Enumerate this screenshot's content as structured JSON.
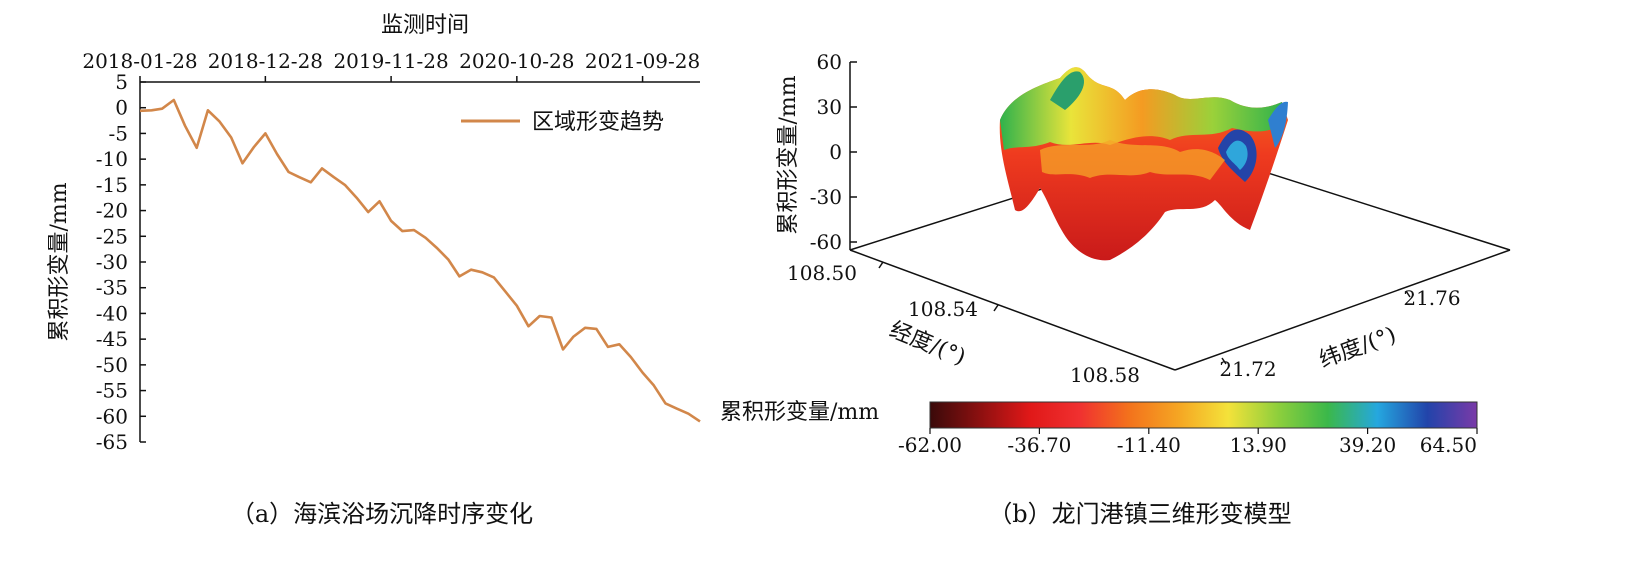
{
  "chart_data": [
    {
      "type": "line",
      "x_axis_title": "监测时间",
      "x_axis_position": "top",
      "x_tick_labels": [
        "2018-01-28",
        "2018-12-28",
        "2019-11-28",
        "2020-10-28",
        "2021-09-28"
      ],
      "ylabel": "累积形变量/mm",
      "y_ticks": [
        5,
        0,
        -5,
        -10,
        -15,
        -20,
        -25,
        -30,
        -35,
        -40,
        -45,
        -50,
        -55,
        -60,
        -65
      ],
      "ylim": [
        -65,
        5
      ],
      "grid": false,
      "legend_position": "top-right",
      "series": [
        {
          "name": "区域形变趋势",
          "color": "#d2874a",
          "points": [
            [
              "2018-01-28",
              -0.6
            ],
            [
              "2018-02-28",
              -0.5
            ],
            [
              "2018-03-28",
              -0.2
            ],
            [
              "2018-04-28",
              1.5
            ],
            [
              "2018-05-28",
              -3.5
            ],
            [
              "2018-06-28",
              -7.8
            ],
            [
              "2018-07-28",
              -0.5
            ],
            [
              "2018-08-28",
              -2.7
            ],
            [
              "2018-09-28",
              -5.8
            ],
            [
              "2018-10-28",
              -10.8
            ],
            [
              "2018-11-28",
              -7.6
            ],
            [
              "2018-12-28",
              -5.0
            ],
            [
              "2019-01-28",
              -9.0
            ],
            [
              "2019-02-28",
              -12.5
            ],
            [
              "2019-03-28",
              -13.5
            ],
            [
              "2019-04-28",
              -14.5
            ],
            [
              "2019-05-28",
              -11.8
            ],
            [
              "2019-06-28",
              -13.5
            ],
            [
              "2019-07-28",
              -15.0
            ],
            [
              "2019-08-28",
              -17.5
            ],
            [
              "2019-09-28",
              -20.3
            ],
            [
              "2019-10-28",
              -18.2
            ],
            [
              "2019-11-28",
              -22.0
            ],
            [
              "2019-12-28",
              -24.0
            ],
            [
              "2020-01-28",
              -23.8
            ],
            [
              "2020-02-28",
              -25.3
            ],
            [
              "2020-03-28",
              -27.2
            ],
            [
              "2020-04-28",
              -29.5
            ],
            [
              "2020-05-28",
              -32.8
            ],
            [
              "2020-06-28",
              -31.5
            ],
            [
              "2020-07-28",
              -32.0
            ],
            [
              "2020-08-28",
              -33.0
            ],
            [
              "2020-09-28",
              -35.8
            ],
            [
              "2020-10-28",
              -38.5
            ],
            [
              "2020-11-28",
              -42.5
            ],
            [
              "2020-12-28",
              -40.5
            ],
            [
              "2021-01-28",
              -40.8
            ],
            [
              "2021-02-28",
              -47.0
            ],
            [
              "2021-03-28",
              -44.5
            ],
            [
              "2021-04-28",
              -42.8
            ],
            [
              "2021-05-28",
              -43.0
            ],
            [
              "2021-06-28",
              -46.5
            ],
            [
              "2021-07-28",
              -46.0
            ],
            [
              "2021-08-28",
              -48.5
            ],
            [
              "2021-09-28",
              -51.5
            ],
            [
              "2021-10-28",
              -54.0
            ],
            [
              "2021-11-28",
              -57.5
            ],
            [
              "2021-12-28",
              -58.5
            ],
            [
              "2022-01-28",
              -59.5
            ],
            [
              "2022-02-28",
              -61.0
            ]
          ]
        }
      ],
      "caption": "（a）海滨浴场沉降时序变化"
    },
    {
      "type": "surface3d",
      "zlabel": "累积形变量/mm",
      "z_ticks": [
        60,
        30,
        0,
        -30,
        -60
      ],
      "xlabel": "经度/(°)",
      "x_ticks": [
        "108.50",
        "108.54",
        "108.58"
      ],
      "ylabel": "纬度/(°)",
      "y_ticks": [
        "21.72",
        "21.76"
      ],
      "colorbar": {
        "label": "累积形变量/mm",
        "ticks": [
          "-62.00",
          "-36.70",
          "-11.40",
          "13.90",
          "39.20",
          "64.50"
        ],
        "range": [
          -62.0,
          64.5
        ],
        "colors": [
          "#3a0a0a",
          "#8c1010",
          "#e01818",
          "#f03030",
          "#f3721c",
          "#f5a623",
          "#f4e23a",
          "#8ecf3c",
          "#3bb84a",
          "#25a7df",
          "#2244aa",
          "#7a3aa8"
        ]
      },
      "caption": "（b）龙门港镇三维形变模型"
    }
  ]
}
